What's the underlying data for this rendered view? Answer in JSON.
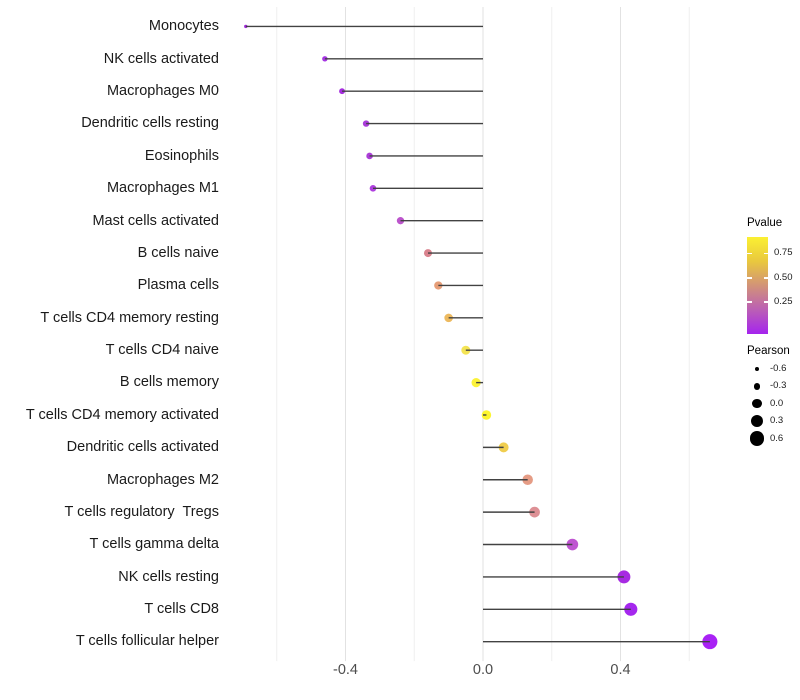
{
  "figure": {
    "background": "#ffffff"
  },
  "chart_data": {
    "type": "scatter",
    "variant": "lollipop",
    "orientation": "horizontal",
    "title": "",
    "xlabel": "",
    "ylabel": "",
    "xlim": [
      -0.7625,
      0.7225
    ],
    "x_major_ticks": [
      -0.4,
      0.0,
      0.4
    ],
    "x_tick_labels": [
      "-0.4",
      "0.0",
      "0.4"
    ],
    "x_gridlines": [
      -0.6,
      -0.4,
      -0.2,
      0.0,
      0.2,
      0.4,
      0.6
    ],
    "stem_origin": 0.0,
    "grid": "vertical-only",
    "legend_position": "right",
    "size_encoding": "Pearson",
    "color_encoding": "Pvalue",
    "points": [
      {
        "cell_type": "Monocytes",
        "pearson": -0.69,
        "pvalue_est": 0.1,
        "color": "#A228DE"
      },
      {
        "cell_type": "NK cells activated",
        "pearson": -0.46,
        "pvalue_est": 0.1,
        "color": "#A636E3"
      },
      {
        "cell_type": "Macrophages M0",
        "pearson": -0.41,
        "pvalue_est": 0.09,
        "color": "#A52DDE"
      },
      {
        "cell_type": "Dendritic cells resting",
        "pearson": -0.34,
        "pvalue_est": 0.13,
        "color": "#AA3CDA"
      },
      {
        "cell_type": "Eosinophils",
        "pearson": -0.33,
        "pvalue_est": 0.13,
        "color": "#AC3ED8"
      },
      {
        "cell_type": "Macrophages M1",
        "pearson": -0.32,
        "pvalue_est": 0.14,
        "color": "#AF3FDF"
      },
      {
        "cell_type": "Mast cells activated",
        "pearson": -0.24,
        "pvalue_est": 0.22,
        "color": "#BC55CC"
      },
      {
        "cell_type": "B cells naive",
        "pearson": -0.16,
        "pvalue_est": 0.48,
        "color": "#D9838E"
      },
      {
        "cell_type": "Plasma cells",
        "pearson": -0.13,
        "pvalue_est": 0.6,
        "color": "#E69E78"
      },
      {
        "cell_type": "T cells CD4 memory resting",
        "pearson": -0.1,
        "pvalue_est": 0.7,
        "color": "#EDBA60"
      },
      {
        "cell_type": "T cells CD4 naive",
        "pearson": -0.05,
        "pvalue_est": 0.85,
        "color": "#F4E455"
      },
      {
        "cell_type": "B cells memory",
        "pearson": -0.02,
        "pvalue_est": 0.93,
        "color": "#FBF23A"
      },
      {
        "cell_type": "T cells CD4 memory activated",
        "pearson": 0.01,
        "pvalue_est": 0.95,
        "color": "#FCF52F"
      },
      {
        "cell_type": "Dendritic cells activated",
        "pearson": 0.06,
        "pvalue_est": 0.8,
        "color": "#F0CE50"
      },
      {
        "cell_type": "Macrophages M2",
        "pearson": 0.13,
        "pvalue_est": 0.58,
        "color": "#E59C85"
      },
      {
        "cell_type": "T cells regulatory  Tregs",
        "pearson": 0.15,
        "pvalue_est": 0.5,
        "color": "#DD9095"
      },
      {
        "cell_type": "T cells gamma delta",
        "pearson": 0.26,
        "pvalue_est": 0.24,
        "color": "#BF55D1"
      },
      {
        "cell_type": "NK cells resting",
        "pearson": 0.41,
        "pvalue_est": 0.08,
        "color": "#A72BE2"
      },
      {
        "cell_type": "T cells CD8",
        "pearson": 0.43,
        "pvalue_est": 0.06,
        "color": "#A527EE"
      },
      {
        "cell_type": "T cells follicular helper",
        "pearson": 0.66,
        "pvalue_est": 0.04,
        "color": "#A922F5"
      }
    ]
  },
  "legends": {
    "pvalue": {
      "title": "Pvalue",
      "tick_labels": [
        "0.75",
        "0.50",
        "0.25"
      ],
      "gradient_stops": [
        "#A524EE",
        "#BB5FB5",
        "#D29378",
        "#E9C83E",
        "#FBF032"
      ]
    },
    "pearson": {
      "title": "Pearson",
      "items": [
        {
          "label": "-0.6",
          "value": -0.6
        },
        {
          "label": "-0.3",
          "value": -0.3
        },
        {
          "label": "0.0",
          "value": 0.0
        },
        {
          "label": "0.3",
          "value": 0.3
        },
        {
          "label": "0.6",
          "value": 0.6
        }
      ]
    }
  },
  "style": {
    "stem_color": "#424242",
    "gridline_major": "#e2e2e2",
    "gridline_minor": "#efefef",
    "axis_text_color": "#4d4d4d",
    "label_text_color": "#1a1a1a",
    "legend_dot_color": "#000000"
  }
}
